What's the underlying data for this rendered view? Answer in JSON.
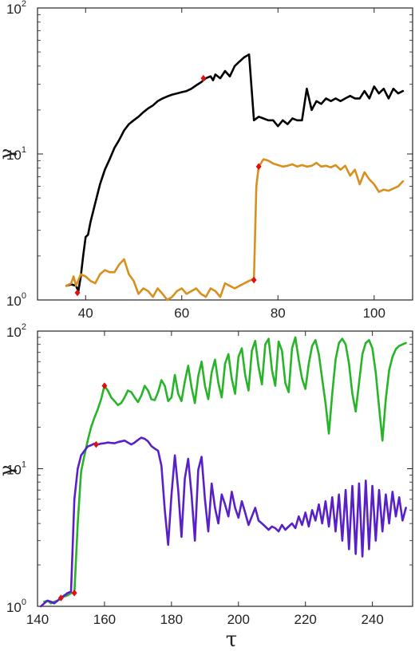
{
  "chart_data": [
    {
      "type": "line",
      "xlabel": "",
      "ylabel": "γ",
      "xlim": [
        30,
        108
      ],
      "ylim": [
        1,
        100
      ],
      "yscale": "log",
      "xticks": [
        "40",
        "60",
        "80",
        "100"
      ],
      "yticks": [
        {
          "base": "10",
          "exp": "0"
        },
        {
          "base": "10",
          "exp": "1"
        },
        {
          "base": "10",
          "exp": "2"
        }
      ],
      "grid": false,
      "series": [
        {
          "color": "#000000",
          "x": [
            36,
            37,
            38,
            38.5,
            39,
            39.5,
            40,
            40.5,
            41,
            42,
            43,
            44,
            45,
            46,
            47,
            48,
            49,
            50,
            51,
            52,
            53,
            54,
            55,
            56,
            57,
            58,
            59,
            60,
            61,
            62,
            63,
            64,
            65,
            66,
            66.5,
            67,
            68,
            69,
            70,
            71,
            72,
            73,
            74,
            75,
            76,
            77,
            78,
            79,
            80,
            81,
            82,
            83,
            84,
            85,
            86,
            87,
            88,
            89,
            90,
            91,
            92,
            93,
            94,
            95,
            96,
            97,
            98,
            99,
            100,
            101,
            102,
            103,
            104,
            105,
            106
          ],
          "y": [
            1.25,
            1.28,
            1.25,
            1.15,
            1.45,
            2.0,
            2.7,
            2.8,
            3.4,
            4.6,
            6.2,
            7.8,
            9.2,
            11,
            12.5,
            14.5,
            16,
            17,
            18,
            19.3,
            20.5,
            21.5,
            23,
            24,
            24.8,
            25.5,
            26,
            26.5,
            27,
            28,
            29.5,
            31,
            33,
            34,
            32,
            35,
            33,
            37,
            34,
            40,
            43,
            46,
            48,
            17,
            18,
            17.5,
            17,
            17,
            15.5,
            17,
            16,
            17.5,
            17,
            17,
            28,
            20,
            23,
            22,
            24,
            23,
            24,
            23,
            24,
            25,
            24,
            24,
            27,
            24,
            29,
            26,
            28,
            24,
            28,
            26,
            27
          ]
        },
        {
          "color": "#d88f1e",
          "x": [
            36,
            37,
            37.5,
            38,
            39,
            40,
            41,
            42,
            43,
            44,
            45,
            46,
            47,
            48,
            49,
            50,
            51,
            52,
            53,
            54,
            55,
            56,
            57,
            58,
            59,
            60,
            61,
            62,
            63,
            64,
            65,
            66,
            67,
            68,
            69,
            70,
            71,
            72,
            73,
            74,
            75,
            75.5,
            76,
            77,
            78,
            79,
            80,
            81,
            82,
            83,
            84,
            85,
            86,
            87,
            88,
            89,
            90,
            91,
            92,
            93,
            94,
            95,
            96,
            97,
            98,
            99,
            100,
            101,
            102,
            103,
            104,
            105,
            106
          ],
          "y": [
            1.25,
            1.3,
            1.45,
            1.25,
            1.5,
            1.45,
            1.35,
            1.3,
            1.5,
            1.6,
            1.55,
            1.55,
            1.75,
            1.9,
            1.5,
            1.35,
            1.1,
            1.2,
            1.15,
            1.05,
            1.2,
            1.1,
            1.0,
            1.05,
            1.15,
            1.2,
            1.1,
            1.15,
            1.2,
            1.1,
            1.05,
            1.2,
            1.15,
            1.05,
            1.3,
            1.25,
            1.2,
            1.25,
            1.3,
            1.35,
            1.4,
            6.0,
            8.2,
            9.2,
            9.0,
            8.6,
            8.4,
            8.2,
            8.3,
            8.5,
            8.2,
            8.4,
            8.2,
            8.3,
            8.7,
            8.2,
            8.3,
            8.1,
            8.4,
            7.8,
            8.3,
            7.1,
            7.8,
            6.2,
            7.5,
            6.7,
            6.2,
            5.5,
            5.7,
            5.6,
            5.8,
            6.0,
            6.5
          ]
        }
      ],
      "markers": [
        {
          "x": 38.3,
          "y": 1.12
        },
        {
          "x": 64.5,
          "y": 33
        },
        {
          "x": 75,
          "y": 1.37
        },
        {
          "x": 76,
          "y": 8.2
        }
      ],
      "marker_color": "#e01010"
    },
    {
      "type": "line",
      "xlabel": "τ",
      "ylabel": "γ",
      "xlim": [
        140,
        252
      ],
      "ylim": [
        1,
        100
      ],
      "yscale": "log",
      "xticks": [
        "140",
        "160",
        "180",
        "200",
        "220",
        "240"
      ],
      "yticks": [
        {
          "base": "10",
          "exp": "0"
        },
        {
          "base": "10",
          "exp": "1"
        },
        {
          "base": "10",
          "exp": "2"
        }
      ],
      "grid": false,
      "series": [
        {
          "color": "#28b428",
          "x": [
            142,
            143,
            144,
            145,
            146,
            147,
            148,
            149,
            150,
            151,
            152,
            153,
            154,
            155,
            156,
            157,
            158,
            159,
            160,
            161,
            162,
            163,
            164,
            165,
            166,
            167,
            168,
            169,
            170,
            171,
            172,
            173,
            174,
            175,
            176,
            177,
            178,
            179,
            180,
            181,
            182,
            183,
            184,
            185,
            186,
            187,
            188,
            189,
            190,
            191,
            192,
            193,
            194,
            195,
            196,
            197,
            198,
            199,
            200,
            201,
            202,
            203,
            204,
            205,
            206,
            207,
            208,
            209,
            210,
            211,
            212,
            213,
            214,
            215,
            216,
            217,
            218,
            219,
            220,
            221,
            222,
            223,
            224,
            225,
            226,
            227,
            228,
            229,
            230,
            231,
            232,
            233,
            234,
            235,
            236,
            237,
            238,
            239,
            240,
            241,
            242,
            243,
            244,
            245,
            246,
            247,
            248,
            249,
            250
          ],
          "y": [
            1.08,
            1.1,
            1.05,
            1.08,
            1.1,
            1.15,
            1.18,
            1.2,
            1.25,
            1.25,
            4,
            9.5,
            12.5,
            16,
            20,
            23.5,
            27,
            32,
            40,
            37,
            33,
            31,
            29,
            30,
            33,
            37,
            36,
            33,
            30.5,
            34,
            40,
            37,
            32,
            31.5,
            36,
            44,
            40,
            31,
            33,
            48,
            35,
            31,
            43,
            56,
            39,
            30,
            47,
            60,
            40,
            32,
            50,
            62,
            42,
            33,
            58,
            68,
            45,
            35,
            65,
            75,
            48,
            37,
            72,
            85,
            55,
            41,
            80,
            88,
            52,
            40,
            84,
            72,
            42,
            36,
            75,
            90,
            62,
            45,
            38,
            58,
            78,
            86,
            68,
            45,
            30,
            18,
            35,
            62,
            82,
            88,
            80,
            58,
            35,
            26,
            42,
            68,
            82,
            86,
            75,
            50,
            28,
            16,
            32,
            52,
            65,
            74,
            78,
            80,
            82
          ]
        },
        {
          "color": "#5a20c8",
          "x": [
            141,
            142,
            143,
            144,
            145,
            146,
            147,
            148,
            149,
            150,
            151,
            152,
            153,
            154,
            155,
            156,
            157,
            158,
            159,
            160,
            161,
            162,
            163,
            164,
            165,
            166,
            167,
            168,
            169,
            170,
            171,
            172,
            173,
            174,
            175,
            176,
            177,
            178,
            179,
            180,
            181,
            182,
            183,
            184,
            185,
            186,
            187,
            188,
            189,
            190,
            191,
            192,
            193,
            194,
            195,
            196,
            197,
            198,
            199,
            200,
            201,
            202,
            203,
            204,
            205,
            206,
            207,
            208,
            209,
            210,
            211,
            212,
            213,
            214,
            215,
            216,
            217,
            218,
            219,
            220,
            221,
            222,
            223,
            224,
            225,
            226,
            227,
            228,
            229,
            230,
            231,
            232,
            233,
            234,
            235,
            236,
            237,
            238,
            239,
            240,
            241,
            242,
            243,
            244,
            245,
            246,
            247,
            248,
            249,
            250
          ],
          "y": [
            1.0,
            1.05,
            1.1,
            1.08,
            1.05,
            1.1,
            1.15,
            1.2,
            1.25,
            1.28,
            6,
            10,
            12.5,
            13.5,
            14.5,
            14.8,
            15.2,
            15.0,
            15.2,
            15.3,
            15.5,
            15.4,
            15.3,
            15.6,
            15.8,
            16.0,
            15.5,
            15.0,
            15.5,
            16.2,
            16.8,
            16.5,
            15.8,
            14.6,
            14.0,
            13.5,
            10.5,
            5.0,
            2.8,
            6.5,
            12.5,
            7.0,
            3.2,
            8.5,
            11.8,
            6.5,
            3.0,
            9.8,
            12.2,
            6.0,
            3.5,
            7.8,
            5.2,
            4.0,
            6.5,
            5.5,
            4.5,
            6.8,
            5.2,
            4.4,
            5.8,
            4.8,
            3.9,
            4.5,
            5.2,
            4.2,
            4.0,
            3.8,
            3.6,
            3.8,
            3.7,
            3.5,
            3.9,
            3.6,
            3.8,
            4.0,
            3.7,
            4.5,
            3.9,
            4.8,
            3.8,
            5.0,
            4.2,
            5.5,
            4.0,
            5.8,
            3.8,
            6.2,
            3.5,
            6.5,
            3.0,
            7.0,
            2.6,
            7.5,
            2.4,
            7.8,
            2.3,
            8.2,
            2.6,
            7.5,
            3.0,
            7.0,
            3.5,
            6.5,
            4.0,
            6.8,
            4.5,
            6.2,
            4.2,
            5.2
          ]
        }
      ],
      "markers": [
        {
          "x": 147,
          "y": 1.15
        },
        {
          "x": 151,
          "y": 1.25
        },
        {
          "x": 157.5,
          "y": 15.0
        },
        {
          "x": 160,
          "y": 40
        }
      ],
      "marker_color": "#e01010"
    }
  ]
}
